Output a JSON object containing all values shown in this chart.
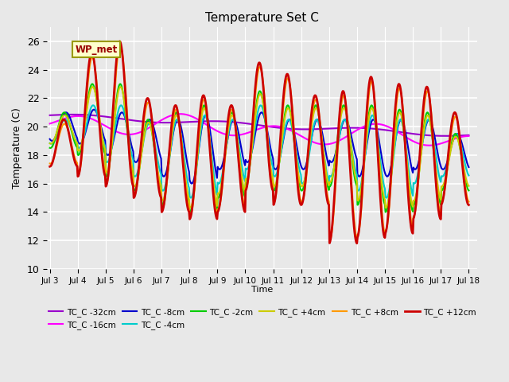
{
  "title": "Temperature Set C",
  "ylabel": "Temperature (C)",
  "xlabel": "Time",
  "annotation_text": "WP_met",
  "ylim": [
    10,
    27
  ],
  "yticks": [
    10,
    12,
    14,
    16,
    18,
    20,
    22,
    24,
    26
  ],
  "series": {
    "TC_C -32cm": {
      "color": "#9900CC",
      "lw": 1.5
    },
    "TC_C -16cm": {
      "color": "#FF00FF",
      "lw": 1.5
    },
    "TC_C -8cm": {
      "color": "#0000CC",
      "lw": 1.5
    },
    "TC_C -4cm": {
      "color": "#00CCCC",
      "lw": 1.5
    },
    "TC_C -2cm": {
      "color": "#00CC00",
      "lw": 1.5
    },
    "TC_C +4cm": {
      "color": "#CCCC00",
      "lw": 1.5
    },
    "TC_C +8cm": {
      "color": "#FF9900",
      "lw": 1.5
    },
    "TC_C +12cm": {
      "color": "#CC0000",
      "lw": 2.0
    }
  },
  "xticklabels": [
    "Jul 3",
    "Jul 4",
    "Jul 5",
    "Jul 6",
    "Jul 7",
    "Jul 8",
    "Jul 9",
    "Jul 10",
    "Jul 11",
    "Jul 12",
    "Jul 13",
    "Jul 14",
    "Jul 15",
    "Jul 16",
    "Jul 17",
    "Jul 18"
  ],
  "legend_row1": [
    "TC_C -32cm",
    "TC_C -16cm",
    "TC_C -8cm",
    "TC_C -4cm",
    "TC_C -2cm",
    "TC_C +4cm"
  ],
  "legend_row2": [
    "TC_C +8cm",
    "TC_C +12cm"
  ],
  "legend_order": [
    "TC_C -32cm",
    "TC_C -16cm",
    "TC_C -8cm",
    "TC_C -4cm",
    "TC_C -2cm",
    "TC_C +4cm",
    "TC_C +8cm",
    "TC_C +12cm"
  ]
}
